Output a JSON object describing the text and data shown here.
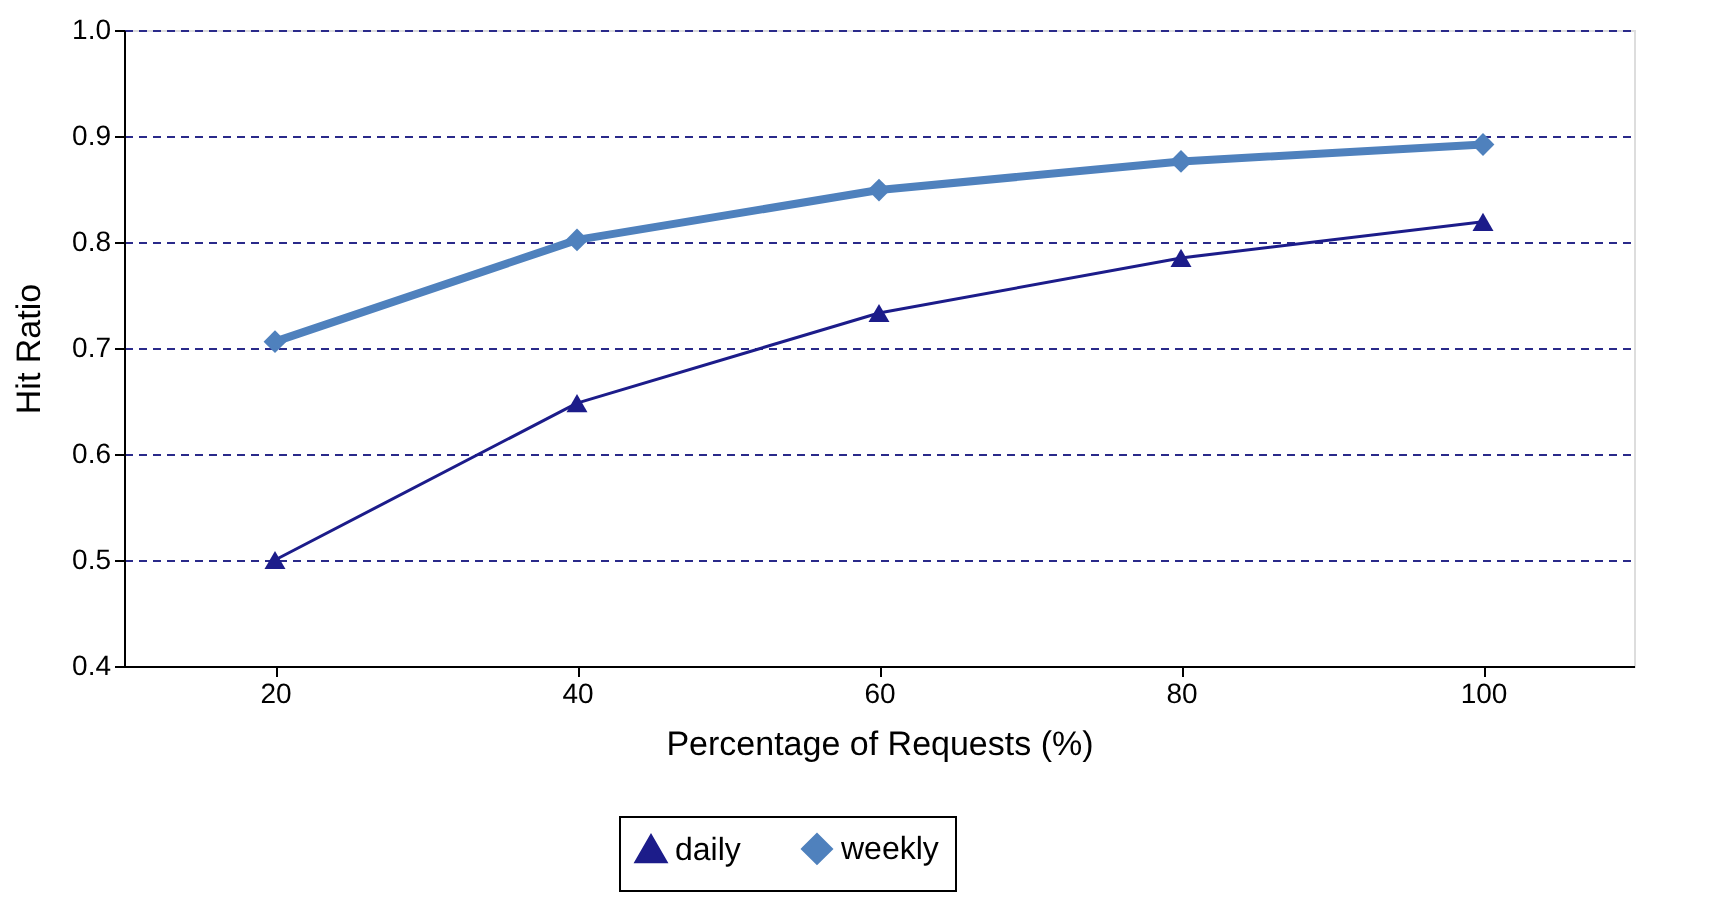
{
  "chart_data": {
    "type": "line",
    "xlabel": "Percentage of Requests (%)",
    "ylabel": "Hit Ratio",
    "x": [
      20,
      40,
      60,
      80,
      100
    ],
    "xlim": [
      10,
      110
    ],
    "xticks": [
      20,
      40,
      60,
      80,
      100
    ],
    "ylim": [
      0.4,
      1.0
    ],
    "yticks": [
      {
        "value": 0.4,
        "label": "0.4"
      },
      {
        "value": 0.5,
        "label": "0.5"
      },
      {
        "value": 0.6,
        "label": "0.6"
      },
      {
        "value": 0.7,
        "label": "0.7"
      },
      {
        "value": 0.8,
        "label": "0.8"
      },
      {
        "value": 0.9,
        "label": "0.9"
      },
      {
        "value": 1.0,
        "label": "1.0"
      }
    ],
    "grid": "y",
    "legend": "bottom",
    "series": [
      {
        "name": "daily",
        "color": "#1c1c8a",
        "marker": "triangle",
        "values": [
          0.5,
          0.648,
          0.733,
          0.785,
          0.819
        ]
      },
      {
        "name": "weekly",
        "color": "#4f81bd",
        "marker": "diamond",
        "values": [
          0.706,
          0.802,
          0.849,
          0.876,
          0.892
        ]
      }
    ]
  }
}
